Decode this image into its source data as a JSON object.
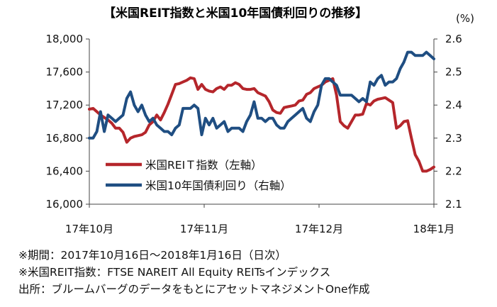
{
  "chart_data": {
    "type": "line",
    "title": "【米国REIT指数と米国10年国債利回りの推移】",
    "y2unit": "(%)",
    "x_ticks": [
      "17年10月",
      "17年11月",
      "17年12月",
      "18年1月"
    ],
    "ylim": [
      16000,
      18000
    ],
    "yticks": [
      "16,000",
      "16,400",
      "16,800",
      "17,200",
      "17,600",
      "18,000"
    ],
    "y2lim": [
      2.1,
      2.6
    ],
    "y2ticks": [
      "2.1",
      "2.2",
      "2.3",
      "2.4",
      "2.5",
      "2.6"
    ],
    "xlim": [
      0,
      92
    ],
    "series": [
      {
        "name": "米国REIＴ指数（左軸）",
        "axis": "left",
        "color": "#b5262b",
        "x": [
          0,
          1,
          2,
          3,
          4,
          5,
          6,
          7,
          8,
          9,
          10,
          11,
          12,
          13,
          14,
          15,
          16,
          17,
          18,
          19,
          20,
          21,
          22,
          23,
          24,
          25,
          26,
          27,
          28,
          29,
          30,
          31,
          32,
          33,
          34,
          35,
          36,
          37,
          38,
          39,
          40,
          41,
          42,
          43,
          44,
          45,
          46,
          47,
          48,
          49,
          50,
          51,
          52,
          53,
          54,
          55,
          56,
          57,
          58,
          59,
          60,
          61,
          62,
          63,
          64,
          65,
          66,
          67,
          68,
          69,
          70,
          71,
          72,
          73,
          74,
          75,
          76,
          77,
          78,
          79,
          80,
          81,
          82,
          83,
          84,
          85,
          86,
          87,
          88,
          89,
          90,
          91,
          92
        ],
        "values": [
          17150,
          17160,
          17120,
          17080,
          17050,
          17020,
          16980,
          16920,
          16920,
          16870,
          16750,
          16800,
          16820,
          16830,
          16840,
          16870,
          16960,
          17000,
          17080,
          17020,
          17110,
          17210,
          17330,
          17450,
          17460,
          17480,
          17500,
          17530,
          17520,
          17390,
          17450,
          17390,
          17370,
          17360,
          17400,
          17420,
          17390,
          17440,
          17440,
          17470,
          17450,
          17400,
          17390,
          17390,
          17400,
          17350,
          17330,
          17310,
          17240,
          17140,
          17110,
          17100,
          17170,
          17180,
          17190,
          17200,
          17250,
          17260,
          17330,
          17350,
          17400,
          17420,
          17440,
          17480,
          17500,
          17520,
          17320,
          17000,
          16950,
          16920,
          17000,
          17080,
          17080,
          17090,
          17220,
          17200,
          17250,
          17270,
          17280,
          17290,
          17260,
          17230,
          16920,
          16950,
          17000,
          17010,
          16800,
          16600,
          16520,
          16400,
          16400,
          16420,
          16450
        ]
      },
      {
        "name": "米国10年国債利回り（右軸）",
        "axis": "right",
        "color": "#1f4e82",
        "x": [
          0,
          1,
          2,
          3,
          4,
          5,
          6,
          7,
          8,
          9,
          10,
          11,
          12,
          13,
          14,
          15,
          16,
          17,
          18,
          19,
          20,
          21,
          22,
          23,
          24,
          25,
          26,
          27,
          28,
          29,
          30,
          31,
          32,
          33,
          34,
          35,
          36,
          37,
          38,
          39,
          40,
          41,
          42,
          43,
          44,
          45,
          46,
          47,
          48,
          49,
          50,
          51,
          52,
          53,
          54,
          55,
          56,
          57,
          58,
          59,
          60,
          61,
          62,
          63,
          64,
          65,
          66,
          67,
          68,
          69,
          70,
          71,
          72,
          73,
          74,
          75,
          76,
          77,
          78,
          79,
          80,
          81,
          82,
          83,
          84,
          85,
          86,
          87,
          88,
          89,
          90,
          91,
          92
        ],
        "values": [
          2.3,
          2.3,
          2.32,
          2.38,
          2.32,
          2.37,
          2.36,
          2.35,
          2.36,
          2.37,
          2.42,
          2.44,
          2.4,
          2.38,
          2.4,
          2.37,
          2.35,
          2.36,
          2.34,
          2.33,
          2.32,
          2.32,
          2.31,
          2.33,
          2.34,
          2.39,
          2.39,
          2.39,
          2.4,
          2.39,
          2.31,
          2.36,
          2.34,
          2.36,
          2.33,
          2.34,
          2.35,
          2.32,
          2.33,
          2.33,
          2.33,
          2.32,
          2.35,
          2.37,
          2.41,
          2.36,
          2.36,
          2.35,
          2.36,
          2.36,
          2.34,
          2.33,
          2.33,
          2.35,
          2.36,
          2.37,
          2.38,
          2.39,
          2.36,
          2.35,
          2.38,
          2.4,
          2.46,
          2.48,
          2.48,
          2.47,
          2.46,
          2.43,
          2.43,
          2.43,
          2.43,
          2.42,
          2.41,
          2.42,
          2.41,
          2.47,
          2.46,
          2.48,
          2.49,
          2.46,
          2.47,
          2.47,
          2.48,
          2.51,
          2.53,
          2.56,
          2.56,
          2.55,
          2.55,
          2.55,
          2.56,
          2.55,
          2.54
        ]
      }
    ]
  },
  "notes": [
    "※期間：2017年10月16日～2018年1月16日（日次）",
    "※米国REIT指数：FTSE NAREIT All Equity REITsインデックス",
    "出所：ブルームバーグのデータをもとにアセットマネジメントOne作成"
  ]
}
